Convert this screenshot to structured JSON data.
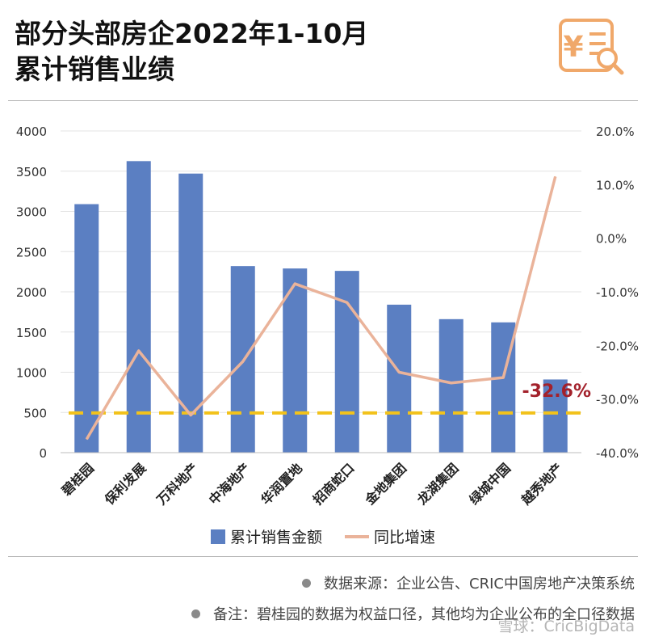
{
  "header": {
    "title_line1": "部分头部房企2022年1-10月",
    "title_line2": "累计销售业绩",
    "logo_icon": "receipt-yen-search-icon"
  },
  "chart_data": {
    "type": "bar+line",
    "categories": [
      "碧桂园",
      "保利发展",
      "万科地产",
      "中海地产",
      "华润置地",
      "招商蛇口",
      "金地集团",
      "龙湖集团",
      "绿城中国",
      "越秀地产"
    ],
    "series": [
      {
        "name": "累计销售金额",
        "type": "bar",
        "axis": "left",
        "color": "#5b7fc2",
        "values": [
          3090,
          3625,
          3470,
          2320,
          2290,
          2260,
          1840,
          1660,
          1620,
          910
        ]
      },
      {
        "name": "同比增速",
        "type": "line",
        "axis": "right",
        "color": "#eab39a",
        "values": [
          -37.5,
          -21.0,
          -33.0,
          -23.0,
          -8.5,
          -12.0,
          -25.0,
          -27.0,
          -26.0,
          11.5
        ]
      }
    ],
    "left_axis": {
      "ylim": [
        0,
        4000
      ],
      "ticks": [
        "0",
        "500",
        "1000",
        "1500",
        "2000",
        "2500",
        "3000",
        "3500",
        "4000"
      ]
    },
    "right_axis": {
      "ylim": [
        -40,
        20
      ],
      "ticks": [
        "-40.0%",
        "-30.0%",
        "-20.0%",
        "-10.0%",
        "0.0%",
        "10.0%",
        "20.0%"
      ]
    },
    "reference_line": {
      "value": -32.6,
      "axis": "right",
      "label": "-32.6%",
      "color": "#f2c21b",
      "label_color": "#a3212b"
    },
    "grid": true,
    "legend_position": "bottom"
  },
  "footer": {
    "note1": "数据来源：企业公告、CRIC中国房地产决策系统",
    "note2": "备注：碧桂园的数据为权益口径，其他均为企业公布的全口径数据",
    "watermark": "雪球：CricBigData"
  }
}
